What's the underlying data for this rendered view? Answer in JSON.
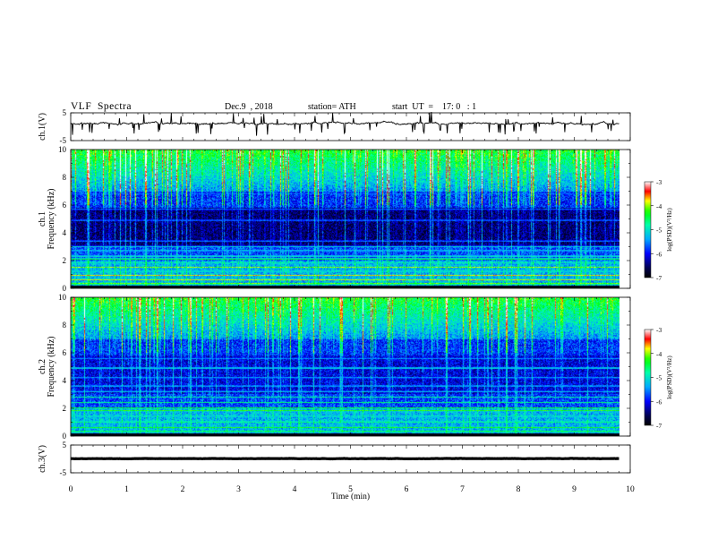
{
  "header": {
    "title": "VLF  Spectra",
    "date": "Dec.9  , 2018",
    "station": "station= ATH",
    "start": "start  UT  =    17: 0   : 1"
  },
  "chart_data": [
    {
      "type": "line",
      "panel": "ch1-waveform",
      "ylabel": "ch.1(V)",
      "ylim": [
        -5,
        5
      ],
      "yticks": [
        "5",
        "-5"
      ],
      "xlim": [
        0,
        10
      ],
      "baseline_v": 1.2,
      "color": "#000000"
    },
    {
      "type": "heatmap",
      "panel": "ch1-spectrogram",
      "ylabel_lines": [
        "ch.1",
        "Frequency  (kHz)"
      ],
      "ylim": [
        0,
        10
      ],
      "yticks": [
        "0",
        "2",
        "4",
        "6",
        "8",
        "10"
      ],
      "xlim": [
        0,
        10
      ],
      "data_end_min": 9.8,
      "colorbar": {
        "label": "log(PSD)(V²/Hz)",
        "ticks": [
          "-3",
          "-4",
          "-5",
          "-6",
          "-7"
        ],
        "range": [
          -7,
          -3
        ]
      }
    },
    {
      "type": "heatmap",
      "panel": "ch2-spectrogram",
      "ylabel_lines": [
        "ch.2",
        "Frequency  (kHz)"
      ],
      "ylim": [
        0,
        10
      ],
      "yticks": [
        "0",
        "2",
        "4",
        "6",
        "8",
        "10"
      ],
      "xlim": [
        0,
        10
      ],
      "data_end_min": 9.8,
      "colorbar": {
        "label": "log(PSD)(V²/Hz)",
        "ticks": [
          "-3",
          "-4",
          "-5",
          "-6",
          "-7"
        ],
        "range": [
          -7,
          -3
        ]
      }
    },
    {
      "type": "line",
      "panel": "ch3-waveform",
      "ylabel": "ch.3(V)",
      "ylim": [
        -5,
        5
      ],
      "yticks": [
        "5",
        "-5"
      ],
      "xlim": [
        0,
        10
      ],
      "baseline_v": 0.1,
      "color": "#000000"
    }
  ],
  "xaxis": {
    "label": "Time  (min)",
    "ticks": [
      "0",
      "1",
      "2",
      "3",
      "4",
      "5",
      "6",
      "7",
      "8",
      "9",
      "10"
    ]
  }
}
